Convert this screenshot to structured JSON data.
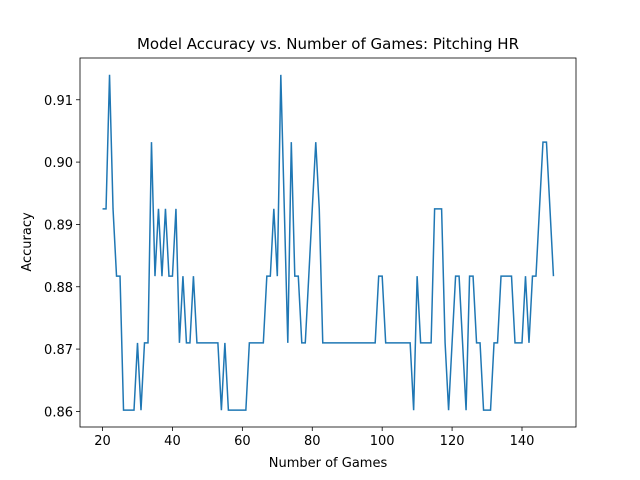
{
  "chart_data": {
    "type": "line",
    "title": "Model Accuracy vs. Number of Games: Pitching HR",
    "xlabel": "Number of Games",
    "ylabel": "Accuracy",
    "x": [
      20,
      21,
      22,
      23,
      24,
      25,
      26,
      27,
      28,
      29,
      30,
      31,
      32,
      33,
      34,
      35,
      36,
      37,
      38,
      39,
      40,
      41,
      42,
      43,
      44,
      45,
      46,
      47,
      48,
      49,
      50,
      51,
      52,
      53,
      54,
      55,
      56,
      57,
      58,
      59,
      60,
      61,
      62,
      63,
      64,
      65,
      66,
      67,
      68,
      69,
      70,
      71,
      72,
      73,
      74,
      75,
      76,
      77,
      78,
      79,
      80,
      81,
      82,
      83,
      84,
      85,
      86,
      87,
      88,
      89,
      90,
      91,
      92,
      93,
      94,
      95,
      96,
      97,
      98,
      99,
      100,
      101,
      102,
      103,
      104,
      105,
      106,
      107,
      108,
      109,
      110,
      111,
      112,
      113,
      114,
      115,
      116,
      117,
      118,
      119,
      120,
      121,
      122,
      123,
      124,
      125,
      126,
      127,
      128,
      129,
      130,
      131,
      132,
      133,
      134,
      135,
      136,
      137,
      138,
      139,
      140,
      141,
      142,
      143,
      144,
      145,
      146,
      147,
      148,
      149
    ],
    "series": [
      {
        "color": "#1f77b4",
        "values": [
          0.8925,
          0.8925,
          0.914,
          0.8925,
          0.8817,
          0.8817,
          0.8602,
          0.8602,
          0.8602,
          0.8602,
          0.871,
          0.8602,
          0.871,
          0.871,
          0.9032,
          0.8817,
          0.8925,
          0.8817,
          0.8925,
          0.8817,
          0.8817,
          0.8925,
          0.871,
          0.8817,
          0.871,
          0.871,
          0.8817,
          0.871,
          0.871,
          0.871,
          0.871,
          0.871,
          0.871,
          0.871,
          0.8602,
          0.871,
          0.8602,
          0.8602,
          0.8602,
          0.8602,
          0.8602,
          0.8602,
          0.871,
          0.871,
          0.871,
          0.871,
          0.871,
          0.8817,
          0.8817,
          0.8925,
          0.8817,
          0.914,
          0.8925,
          0.871,
          0.9032,
          0.8817,
          0.8817,
          0.871,
          0.871,
          0.8817,
          0.8925,
          0.9032,
          0.8925,
          0.871,
          0.871,
          0.871,
          0.871,
          0.871,
          0.871,
          0.871,
          0.871,
          0.871,
          0.871,
          0.871,
          0.871,
          0.871,
          0.871,
          0.871,
          0.871,
          0.8817,
          0.8817,
          0.871,
          0.871,
          0.871,
          0.871,
          0.871,
          0.871,
          0.871,
          0.871,
          0.8602,
          0.8817,
          0.871,
          0.871,
          0.871,
          0.871,
          0.8925,
          0.8925,
          0.8925,
          0.871,
          0.8602,
          0.871,
          0.8817,
          0.8817,
          0.871,
          0.8602,
          0.8817,
          0.8817,
          0.871,
          0.871,
          0.8602,
          0.8602,
          0.8602,
          0.871,
          0.871,
          0.8817,
          0.8817,
          0.8817,
          0.8817,
          0.871,
          0.871,
          0.871,
          0.8817,
          0.871,
          0.8817,
          0.8817,
          0.8925,
          0.9032,
          0.9032,
          0.8925,
          0.8817
        ]
      }
    ],
    "xlim": [
      13.55,
      155.45
    ],
    "xticks": [
      20,
      40,
      60,
      80,
      100,
      120,
      140
    ],
    "ylim": [
      0.8575,
      0.9167
    ],
    "yticks": [
      0.86,
      0.87,
      0.88,
      0.89,
      {
        "value": 0.9,
        "label": "0.90"
      },
      0.91
    ]
  }
}
